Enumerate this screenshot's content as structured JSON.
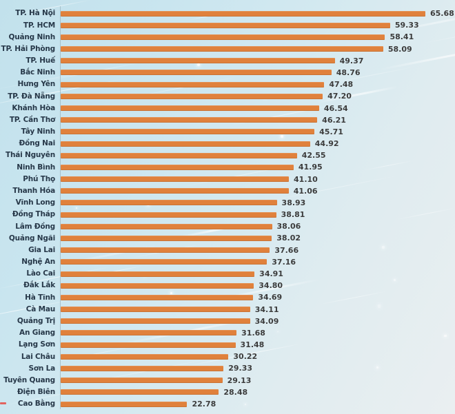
{
  "chart_data": {
    "type": "bar",
    "orientation": "horizontal",
    "title": "",
    "xlabel": "",
    "ylabel": "",
    "xlim": [
      0,
      66
    ],
    "grid": false,
    "legend": false,
    "sort": "descending",
    "value_format": "2-decimals",
    "categories": [
      "TP. Hà Nội",
      "TP. HCM",
      "Quảng Ninh",
      "TP. Hải Phòng",
      "TP. Huế",
      "Bắc Ninh",
      "Hưng Yên",
      "TP. Đà Nẵng",
      "Khánh Hòa",
      "TP. Cần Thơ",
      "Tây Ninh",
      "Đồng Nai",
      "Thái Nguyên",
      "Ninh Bình",
      "Phú Thọ",
      "Thanh Hóa",
      "Vĩnh Long",
      "Đồng Tháp",
      "Lâm Đồng",
      "Quảng Ngãi",
      "Gia Lai",
      "Nghệ An",
      "Lào Cai",
      "Đắk Lắk",
      "Hà Tĩnh",
      "Cà Mau",
      "Quảng Trị",
      "An Giang",
      "Lạng Sơn",
      "Lai Châu",
      "Sơn La",
      "Tuyên Quang",
      "Điện Biên",
      "Cao Bằng"
    ],
    "values": [
      65.68,
      59.33,
      58.41,
      58.09,
      49.37,
      48.76,
      47.48,
      47.2,
      46.54,
      46.21,
      45.71,
      44.92,
      42.55,
      41.95,
      41.1,
      41.06,
      38.93,
      38.81,
      38.06,
      38.02,
      37.66,
      37.16,
      34.91,
      34.8,
      34.69,
      34.11,
      34.09,
      31.68,
      31.48,
      30.22,
      29.33,
      29.13,
      28.48,
      22.78
    ],
    "colors": {
      "bar": "#E0813C",
      "category_label": "#273849",
      "value_label": "#3C3C3C",
      "axis_line": "#96ADB7",
      "background_top_left": "#C2E1EC",
      "background_bottom_right": "#EAEFF1",
      "red_dash": "#E2635E"
    }
  }
}
